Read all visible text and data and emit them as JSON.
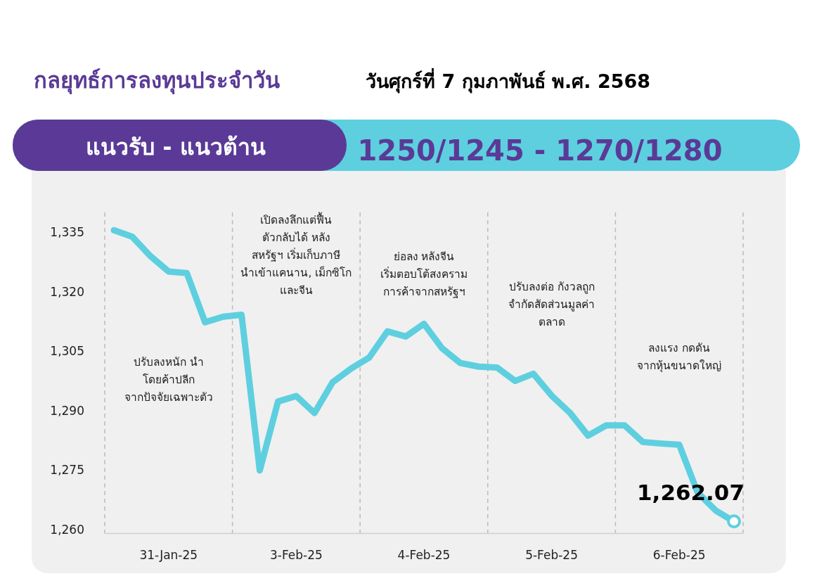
{
  "chart_data": {
    "type": "line",
    "title": "กลยุทธ์การลงทุนประจำวัน",
    "subtitle": "วันศุกร์ที่ 7 กุมภาพันธ์ พ.ศ. 2568",
    "annotations": [
      "แนวรับ - แนวต้าน",
      "1250/1245 - 1270/1280",
      "ปรับลงหนัก นำ\nโดยค้าปลีก\nจากปัจจัยเฉพาะตัว",
      "เปิดลงลึกแต่ฟื้น\nตัวกลับได้ หลัง\nสหรัฐฯ เริ่มเก็บภาษี\nนำเข้าแคนาน, เม็กซิโก\nและจีน",
      "ย่อลง หลังจีน\nเริ่มตอบโต้สงคราม\nการค้าจากสหรัฐฯ",
      "ปรับลงต่อ กังวลถูก\nจำกัดสัดส่วนมูลค่า\nตลาด",
      "ลงแรง กดดัน\nจากหุ้นขนาดใหญ่"
    ],
    "categories": [
      null,
      null,
      null,
      "31-Jan-25",
      null,
      null,
      null,
      null,
      null,
      null,
      "3-Feb-25",
      null,
      null,
      null,
      null,
      null,
      null,
      "4-Feb-25",
      null,
      null,
      null,
      null,
      null,
      null,
      "5-Feb-25",
      null,
      null,
      null,
      null,
      null,
      null,
      "6-Feb-25",
      null,
      null,
      null
    ],
    "series": [
      {
        "color": "#5ecfdf",
        "values": [
          1335.5,
          1333.9,
          1329.0,
          1325.1,
          1324.7,
          1312.3,
          1313.7,
          1314.2,
          1274.9,
          1292.3,
          1293.7,
          1289.4,
          1297.2,
          1300.6,
          1303.4,
          1310.0,
          1308.7,
          1311.9,
          1305.7,
          1302.0,
          1301.1,
          1300.9,
          1297.5,
          1299.3,
          1293.8,
          1289.5,
          1283.7,
          1286.3,
          1286.3,
          1282.1,
          1281.7,
          1281.4,
          1269.4,
          1264.8,
          1262.07
        ],
        "value_labels": [
          null,
          null,
          null,
          null,
          null,
          null,
          null,
          null,
          null,
          null,
          null,
          null,
          null,
          null,
          null,
          null,
          null,
          null,
          null,
          null,
          null,
          null,
          null,
          null,
          null,
          null,
          null,
          null,
          null,
          null,
          null,
          null,
          null,
          null,
          "1,262.07"
        ]
      }
    ],
    "ylim": [
      1259,
      1340
    ],
    "yticks": [
      {
        "value": 1260,
        "label": "1,260"
      },
      {
        "value": 1275,
        "label": "1,275"
      },
      {
        "value": 1290,
        "label": "1,290"
      },
      {
        "value": 1305,
        "label": "1,305"
      },
      {
        "value": 1320,
        "label": "1,320"
      },
      {
        "value": 1335,
        "label": "1,335"
      }
    ],
    "marker": "none",
    "line_style": "solid"
  }
}
